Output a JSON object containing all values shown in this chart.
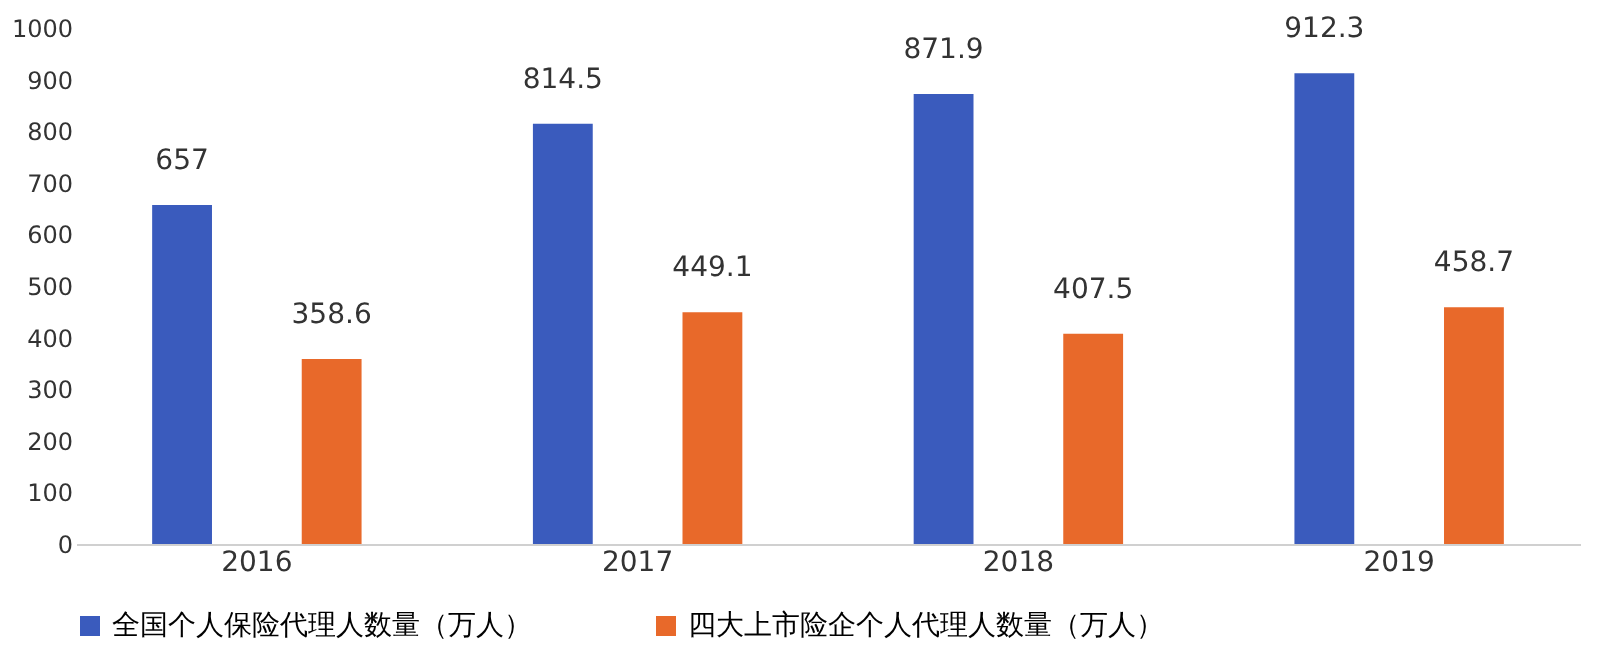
{
  "chart_data": {
    "type": "bar",
    "categories": [
      "2016",
      "2017",
      "2018",
      "2019"
    ],
    "series": [
      {
        "name": "全国个人保险代理人数量（万人）",
        "color": "#3a5bbd",
        "values": [
          657,
          814.5,
          871.9,
          912.3
        ]
      },
      {
        "name": "四大上市险企个人代理人数量（万人）",
        "color": "#e8692a",
        "values": [
          358.6,
          449.1,
          407.5,
          458.7
        ]
      }
    ],
    "ylim": [
      0,
      1000
    ],
    "yticks": [
      0,
      100,
      200,
      300,
      400,
      500,
      600,
      700,
      800,
      900,
      1000
    ],
    "grid": false,
    "legend": "bottom",
    "data_labels": true
  }
}
